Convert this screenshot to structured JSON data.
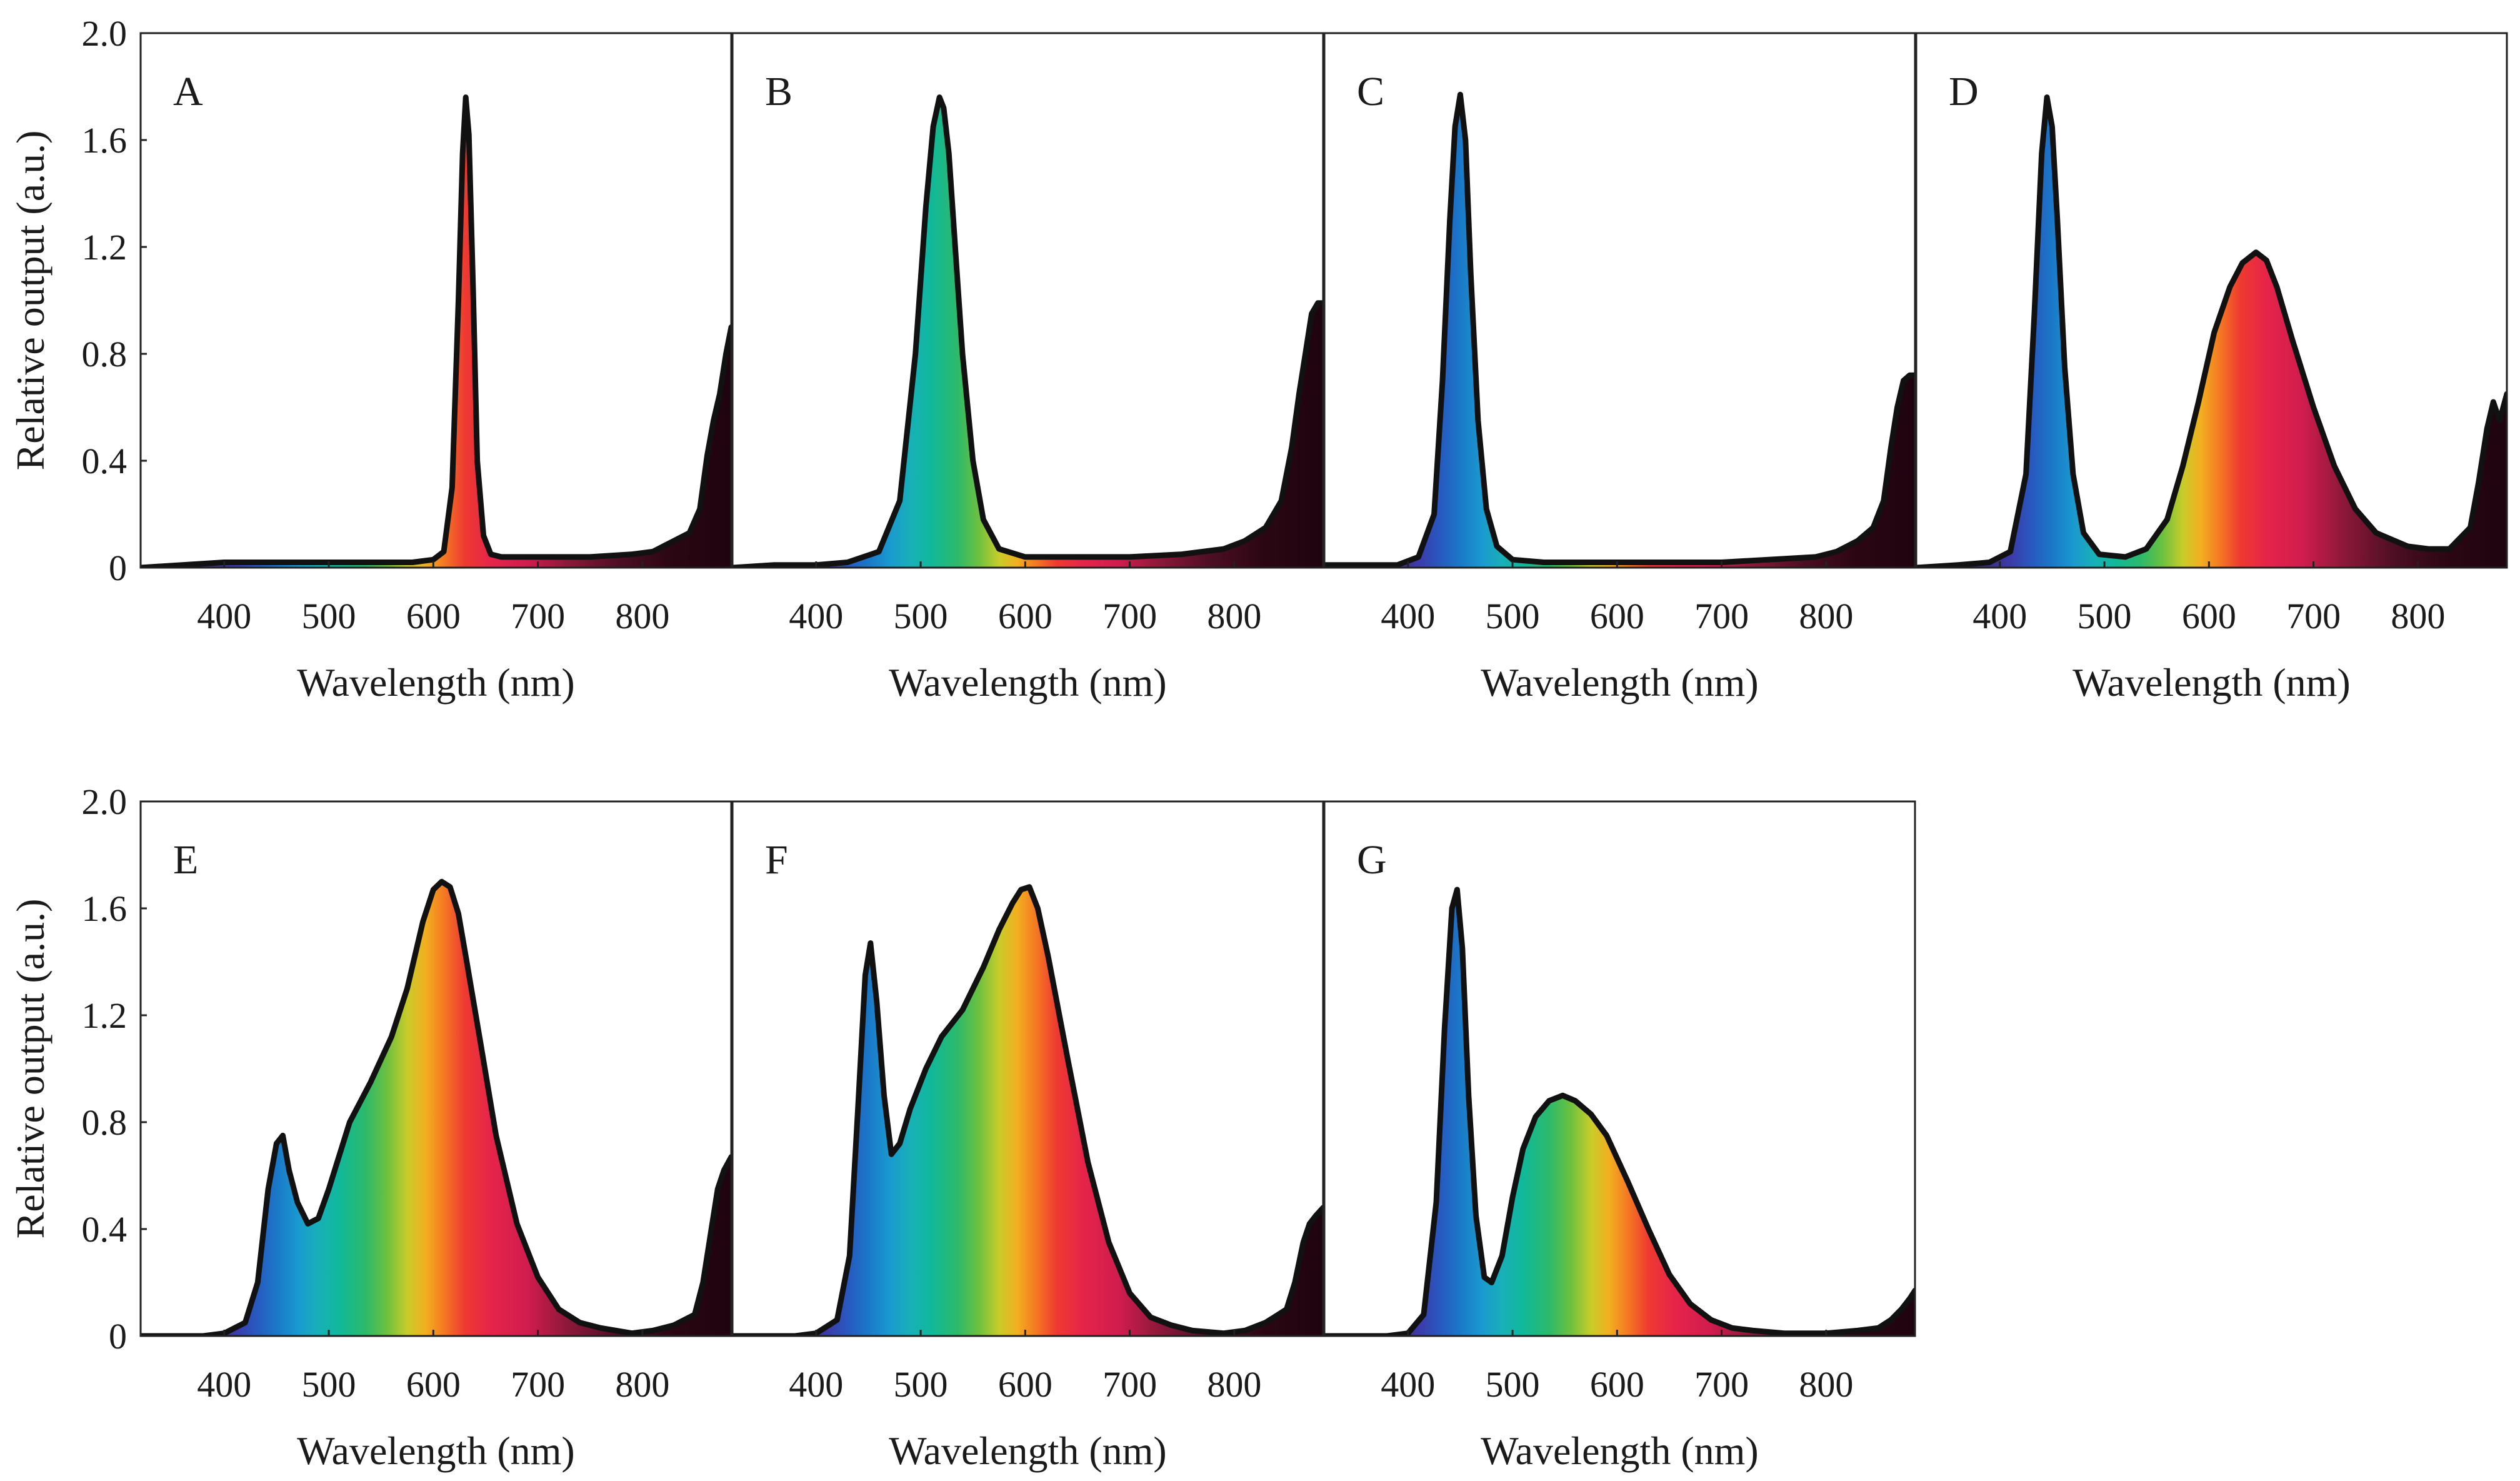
{
  "chart_data": {
    "type": "area",
    "xlabel": "Wavelength (nm)",
    "ylabel": "Relative output (a.u.)",
    "xlim": [
      320,
      885
    ],
    "ylim": [
      0,
      2.0
    ],
    "x_ticks": [
      400,
      500,
      600,
      700,
      800
    ],
    "x_tick_labels": [
      "400",
      "500",
      "600",
      "700",
      "800"
    ],
    "y_ticks": [
      0,
      0.4,
      0.8,
      1.2,
      1.6,
      2.0
    ],
    "y_tick_labels": [
      "0",
      "0.4",
      "0.8",
      "1.2",
      "1.6",
      "2.0"
    ],
    "fill": "visible-spectrum color gradient under each curve",
    "panels": [
      {
        "label": "A",
        "x": [
          320,
          360,
          400,
          450,
          500,
          550,
          580,
          600,
          610,
          618,
          624,
          628,
          631,
          634,
          638,
          642,
          648,
          655,
          665,
          700,
          750,
          790,
          810,
          830,
          845,
          855,
          862,
          868,
          874,
          880,
          885
        ],
        "y": [
          0.0,
          0.01,
          0.02,
          0.02,
          0.02,
          0.02,
          0.02,
          0.03,
          0.06,
          0.3,
          1.0,
          1.55,
          1.76,
          1.62,
          1.05,
          0.4,
          0.12,
          0.05,
          0.04,
          0.04,
          0.04,
          0.05,
          0.06,
          0.1,
          0.13,
          0.22,
          0.42,
          0.55,
          0.65,
          0.8,
          0.9
        ]
      },
      {
        "label": "B",
        "x": [
          320,
          360,
          400,
          430,
          460,
          480,
          495,
          505,
          512,
          518,
          522,
          527,
          533,
          540,
          550,
          560,
          575,
          600,
          650,
          700,
          750,
          790,
          810,
          830,
          845,
          855,
          862,
          868,
          874,
          880,
          885
        ],
        "y": [
          0.0,
          0.01,
          0.01,
          0.02,
          0.06,
          0.25,
          0.8,
          1.35,
          1.65,
          1.76,
          1.72,
          1.55,
          1.2,
          0.8,
          0.4,
          0.18,
          0.07,
          0.04,
          0.04,
          0.04,
          0.05,
          0.07,
          0.1,
          0.15,
          0.25,
          0.45,
          0.65,
          0.8,
          0.95,
          0.99,
          0.99
        ]
      },
      {
        "label": "C",
        "x": [
          320,
          360,
          390,
          410,
          425,
          433,
          440,
          445,
          450,
          455,
          460,
          467,
          475,
          485,
          500,
          530,
          600,
          700,
          790,
          810,
          830,
          845,
          855,
          862,
          868,
          874,
          880,
          885
        ],
        "y": [
          0.01,
          0.01,
          0.01,
          0.04,
          0.2,
          0.7,
          1.3,
          1.65,
          1.77,
          1.6,
          1.1,
          0.55,
          0.22,
          0.08,
          0.03,
          0.02,
          0.02,
          0.02,
          0.04,
          0.06,
          0.1,
          0.15,
          0.25,
          0.45,
          0.6,
          0.7,
          0.72,
          0.72
        ]
      },
      {
        "label": "D",
        "x": [
          320,
          360,
          390,
          410,
          425,
          433,
          440,
          445,
          450,
          455,
          462,
          470,
          480,
          495,
          520,
          540,
          560,
          575,
          590,
          605,
          620,
          632,
          645,
          655,
          665,
          680,
          700,
          720,
          740,
          760,
          790,
          810,
          830,
          850,
          858,
          866,
          872,
          878,
          885
        ],
        "y": [
          0.0,
          0.01,
          0.02,
          0.06,
          0.35,
          0.95,
          1.55,
          1.76,
          1.65,
          1.3,
          0.75,
          0.35,
          0.13,
          0.05,
          0.04,
          0.07,
          0.18,
          0.38,
          0.62,
          0.88,
          1.05,
          1.14,
          1.18,
          1.15,
          1.05,
          0.85,
          0.6,
          0.38,
          0.22,
          0.13,
          0.08,
          0.07,
          0.07,
          0.15,
          0.32,
          0.52,
          0.62,
          0.55,
          0.65
        ]
      },
      {
        "label": "E",
        "x": [
          320,
          380,
          400,
          420,
          432,
          442,
          450,
          456,
          462,
          470,
          480,
          490,
          500,
          520,
          540,
          560,
          575,
          590,
          600,
          608,
          616,
          624,
          632,
          645,
          660,
          680,
          700,
          720,
          740,
          760,
          790,
          810,
          830,
          850,
          858,
          866,
          872,
          878,
          885
        ],
        "y": [
          0.0,
          0.0,
          0.01,
          0.05,
          0.2,
          0.55,
          0.72,
          0.75,
          0.62,
          0.5,
          0.42,
          0.44,
          0.55,
          0.8,
          0.95,
          1.12,
          1.3,
          1.55,
          1.67,
          1.7,
          1.68,
          1.58,
          1.4,
          1.1,
          0.75,
          0.42,
          0.22,
          0.1,
          0.05,
          0.03,
          0.01,
          0.02,
          0.04,
          0.08,
          0.2,
          0.4,
          0.55,
          0.62,
          0.67
        ]
      },
      {
        "label": "F",
        "x": [
          320,
          380,
          400,
          420,
          432,
          440,
          447,
          452,
          458,
          465,
          472,
          480,
          490,
          505,
          520,
          540,
          560,
          575,
          588,
          596,
          604,
          612,
          622,
          640,
          660,
          680,
          700,
          720,
          740,
          760,
          790,
          810,
          830,
          850,
          858,
          866,
          872,
          878,
          885
        ],
        "y": [
          0.0,
          0.0,
          0.01,
          0.06,
          0.3,
          0.85,
          1.35,
          1.47,
          1.25,
          0.9,
          0.68,
          0.72,
          0.85,
          1.0,
          1.12,
          1.22,
          1.38,
          1.52,
          1.62,
          1.67,
          1.68,
          1.6,
          1.42,
          1.05,
          0.65,
          0.35,
          0.16,
          0.07,
          0.04,
          0.02,
          0.01,
          0.02,
          0.05,
          0.1,
          0.2,
          0.35,
          0.42,
          0.45,
          0.48
        ]
      },
      {
        "label": "G",
        "x": [
          320,
          380,
          400,
          415,
          427,
          435,
          442,
          447,
          452,
          458,
          465,
          473,
          480,
          490,
          500,
          510,
          522,
          535,
          548,
          560,
          575,
          590,
          610,
          630,
          650,
          670,
          690,
          710,
          730,
          760,
          800,
          830,
          850,
          862,
          872,
          880,
          885
        ],
        "y": [
          0.0,
          0.0,
          0.01,
          0.08,
          0.5,
          1.15,
          1.6,
          1.67,
          1.45,
          0.9,
          0.45,
          0.22,
          0.2,
          0.3,
          0.52,
          0.7,
          0.82,
          0.88,
          0.9,
          0.88,
          0.83,
          0.75,
          0.58,
          0.4,
          0.23,
          0.12,
          0.06,
          0.03,
          0.02,
          0.01,
          0.01,
          0.02,
          0.03,
          0.06,
          0.1,
          0.14,
          0.17
        ]
      }
    ]
  }
}
